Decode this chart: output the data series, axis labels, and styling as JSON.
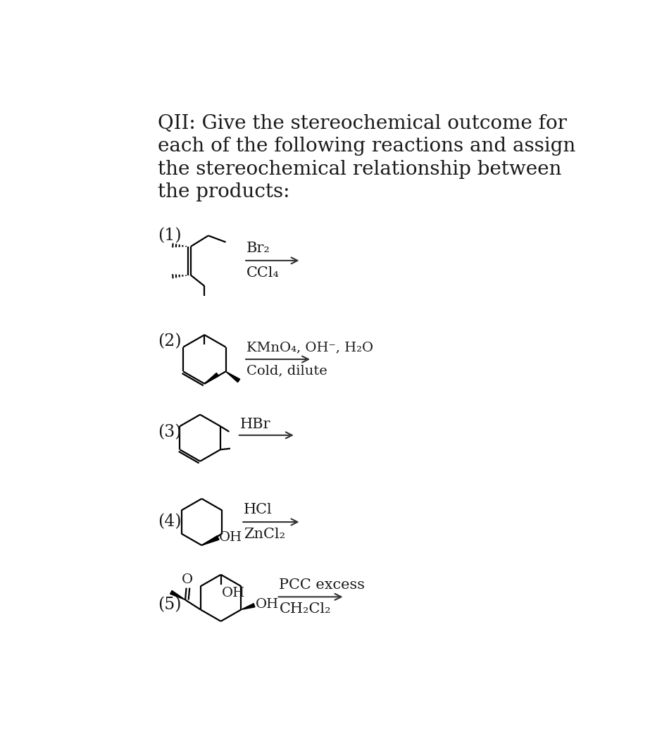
{
  "title_lines": [
    "QII: Give the stereochemical outcome for",
    "each of the following reactions and assign",
    "the stereochemical relationship between",
    "the products:"
  ],
  "bg_color": "#ffffff",
  "text_color": "#1a1a1a",
  "title_fontsize": 20,
  "label_fontsize": 17,
  "reaction_fontsize": 15,
  "reactions": [
    {
      "number": "(1)",
      "r1": "Br₂",
      "r2": "CCl₄"
    },
    {
      "number": "(2)",
      "r1": "KMnO₄, OH⁻, H₂O",
      "r2": "Cold, dilute"
    },
    {
      "number": "(3)",
      "r1": "HBr",
      "r2": ""
    },
    {
      "number": "(4)",
      "r1": "HCl",
      "r2": "ZnCl₂"
    },
    {
      "number": "(5)",
      "r1": "PCC excess",
      "r2": "CH₂Cl₂"
    }
  ]
}
